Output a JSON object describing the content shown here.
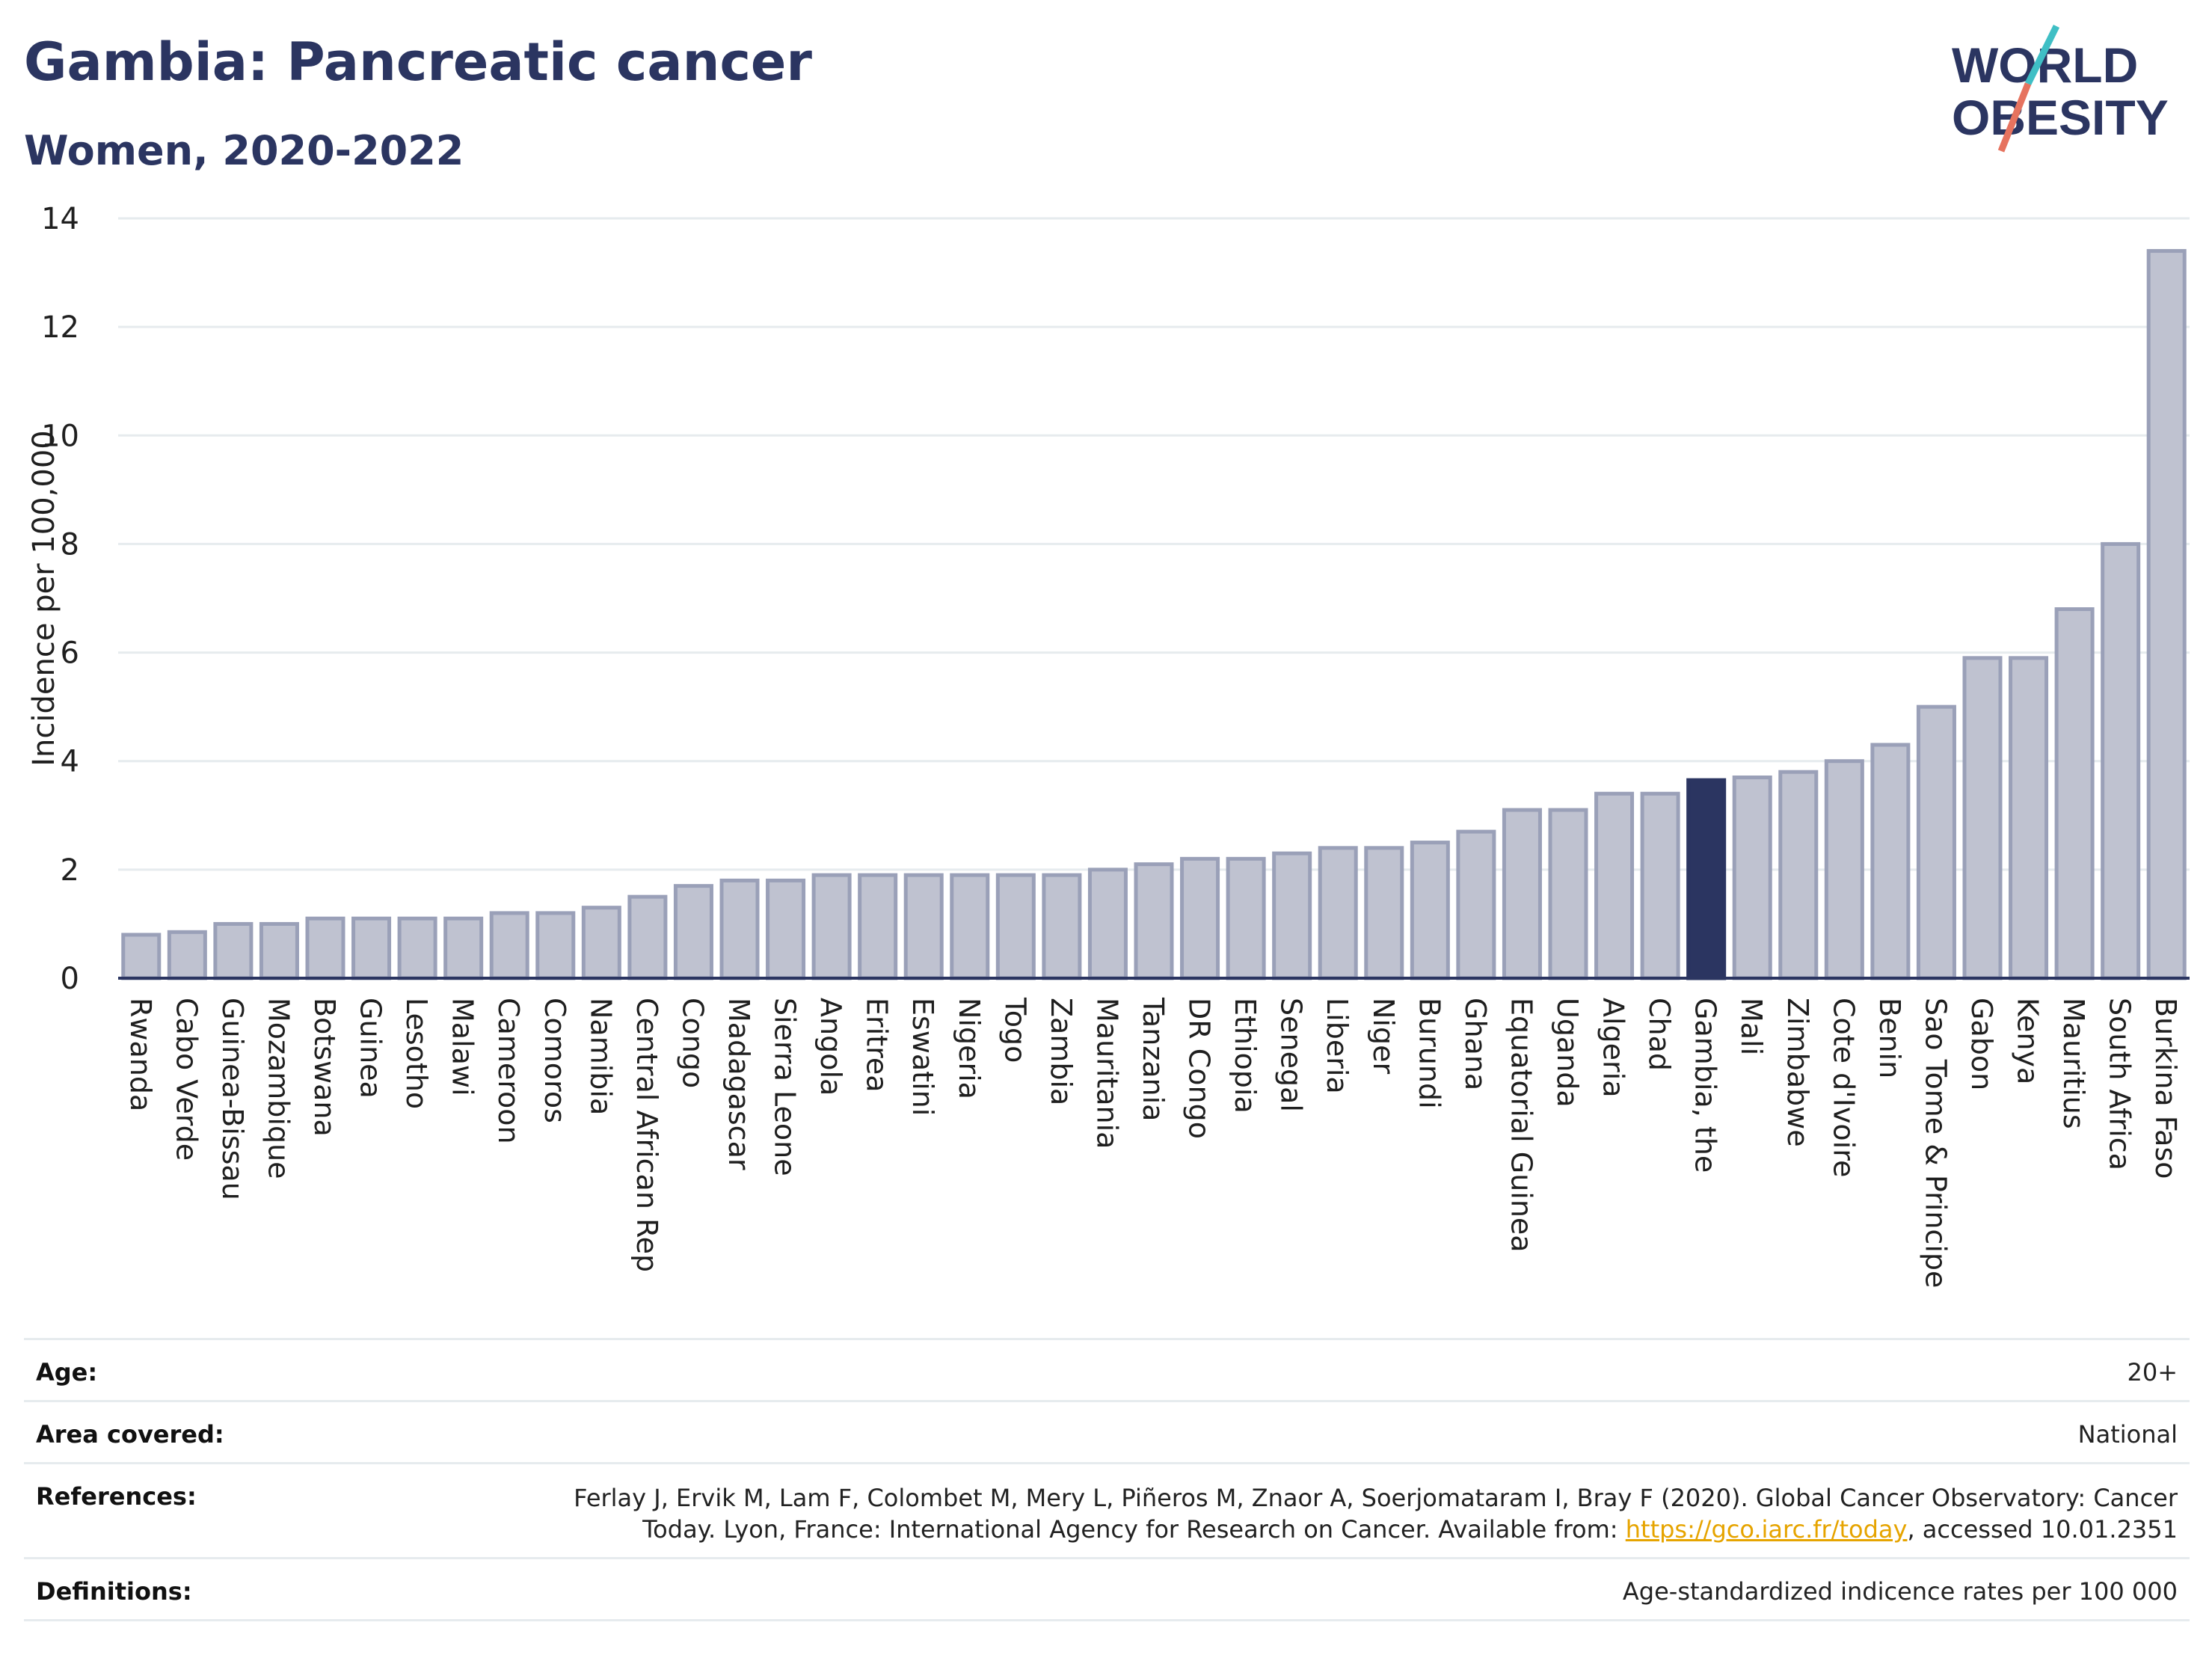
{
  "header": {
    "title": "Gambia: Pancreatic cancer",
    "subtitle": "Women, 2020-2022",
    "logo_line1": "WORLD",
    "logo_line2": "OBESITY"
  },
  "colors": {
    "bar": "#bfc2d0",
    "bar_border": "#9aa0b8",
    "highlight": "#2b3561",
    "grid": "#e6ebee",
    "title": "#2b3561",
    "logo_teal": "#3fbfc5",
    "logo_coral": "#e6735f"
  },
  "chart_data": {
    "type": "bar",
    "title": "Gambia: Pancreatic cancer",
    "subtitle": "Women, 2020-2022",
    "xlabel": "",
    "ylabel": "Incidence per 100,000",
    "ylim": [
      0,
      14
    ],
    "yticks": [
      0,
      2,
      4,
      6,
      8,
      10,
      12,
      14
    ],
    "grid": true,
    "highlight": "Gambia, the",
    "categories": [
      "Rwanda",
      "Cabo Verde",
      "Guinea-Bissau",
      "Mozambique",
      "Botswana",
      "Guinea",
      "Lesotho",
      "Malawi",
      "Cameroon",
      "Comoros",
      "Namibia",
      "Central African Rep",
      "Congo",
      "Madagascar",
      "Sierra Leone",
      "Angola",
      "Eritrea",
      "Eswatini",
      "Nigeria",
      "Togo",
      "Zambia",
      "Mauritania",
      "Tanzania",
      "DR Congo",
      "Ethiopia",
      "Senegal",
      "Liberia",
      "Niger",
      "Burundi",
      "Ghana",
      "Equatorial Guinea",
      "Uganda",
      "Algeria",
      "Chad",
      "Gambia, the",
      "Mali",
      "Zimbabwe",
      "Cote d'Ivoire",
      "Benin",
      "Sao Tome & Principe",
      "Gabon",
      "Kenya",
      "Mauritius",
      "South Africa",
      "Burkina Faso"
    ],
    "values": [
      0.8,
      0.85,
      1.0,
      1.0,
      1.1,
      1.1,
      1.1,
      1.1,
      1.2,
      1.2,
      1.3,
      1.5,
      1.7,
      1.8,
      1.8,
      1.9,
      1.9,
      1.9,
      1.9,
      1.9,
      1.9,
      2.0,
      2.1,
      2.2,
      2.2,
      2.3,
      2.4,
      2.4,
      2.5,
      2.7,
      3.1,
      3.1,
      3.4,
      3.4,
      3.65,
      3.7,
      3.8,
      4.0,
      4.3,
      5.0,
      5.9,
      5.9,
      6.8,
      8.0,
      13.4
    ]
  },
  "info": {
    "age_label": "Age:",
    "age_value": "20+",
    "area_label": "Area covered:",
    "area_value": "National",
    "references_label": "References:",
    "references_line1": "Ferlay J, Ervik M, Lam F, Colombet M, Mery L, Piñeros M, Znaor A, Soerjomataram I, Bray F (2020). Global Cancer Observatory: Cancer",
    "references_line2a": "Today. Lyon, France: International Agency for Research on Cancer. Available from: ",
    "references_link": "https://gco.iarc.fr/today",
    "references_line2b": ", accessed 10.01.2351",
    "definitions_label": "Definitions:",
    "definitions_value": "Age-standardized indicence rates per 100 000"
  }
}
